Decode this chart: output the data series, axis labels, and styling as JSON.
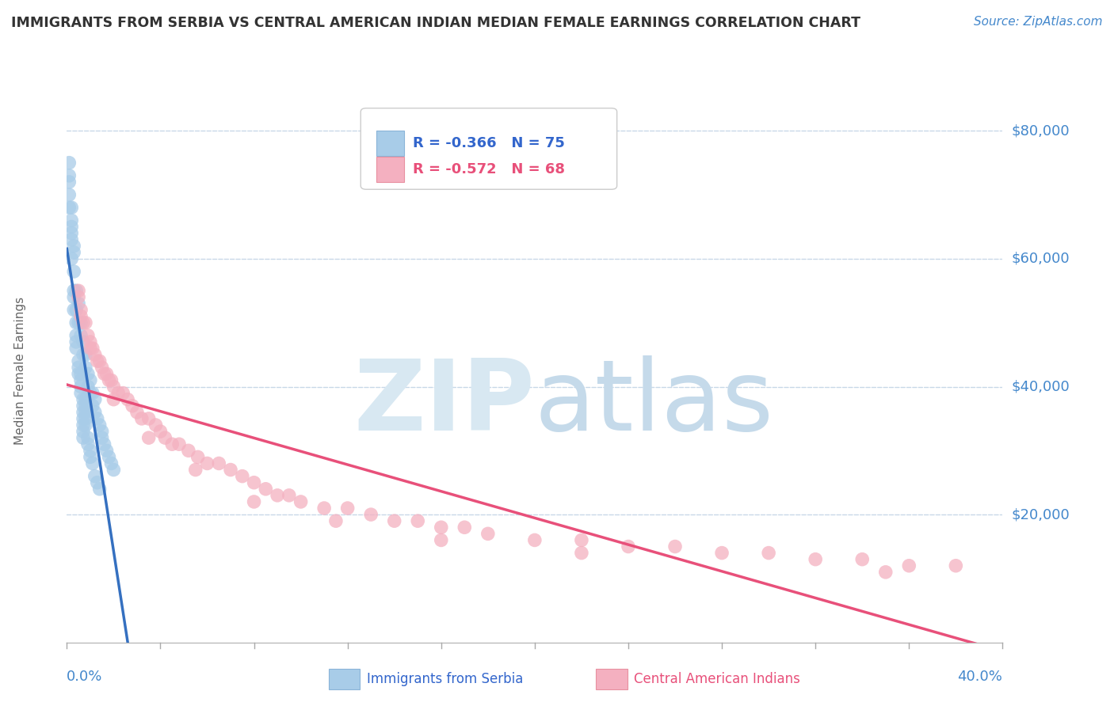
{
  "title": "IMMIGRANTS FROM SERBIA VS CENTRAL AMERICAN INDIAN MEDIAN FEMALE EARNINGS CORRELATION CHART",
  "source": "Source: ZipAtlas.com",
  "series1_label": "Immigrants from Serbia",
  "series2_label": "Central American Indians",
  "legend1_text": "R = -0.366   N = 75",
  "legend2_text": "R = -0.572   N = 68",
  "series1_scatter_color": "#a8cce8",
  "series2_scatter_color": "#f4b0c0",
  "series1_line_color": "#3570c0",
  "series2_line_color": "#e8507a",
  "legend1_text_color": "#3366cc",
  "legend2_text_color": "#e8507a",
  "title_color": "#333333",
  "source_color": "#4488cc",
  "ylabel_color": "#666666",
  "ytick_color": "#4488cc",
  "xtick_color": "#4488cc",
  "watermark_zip_color": "#d5e5f0",
  "watermark_atlas_color": "#c0d8ee",
  "grid_color": "#c8d8e8",
  "background_color": "#ffffff",
  "xlim": [
    0.0,
    0.4
  ],
  "ylim": [
    0,
    85000
  ],
  "ytick_vals": [
    20000,
    40000,
    60000,
    80000
  ],
  "ytick_labels": [
    "$20,000",
    "$40,000",
    "$60,000",
    "$80,000"
  ],
  "serbia_x": [
    0.002,
    0.002,
    0.003,
    0.003,
    0.003,
    0.004,
    0.004,
    0.005,
    0.005,
    0.006,
    0.006,
    0.007,
    0.007,
    0.008,
    0.008,
    0.009,
    0.009,
    0.01,
    0.01,
    0.011,
    0.011,
    0.012,
    0.012,
    0.013,
    0.014,
    0.015,
    0.015,
    0.016,
    0.017,
    0.018,
    0.019,
    0.02,
    0.001,
    0.001,
    0.001,
    0.002,
    0.002,
    0.002,
    0.003,
    0.003,
    0.003,
    0.004,
    0.004,
    0.004,
    0.004,
    0.005,
    0.005,
    0.005,
    0.006,
    0.006,
    0.006,
    0.006,
    0.007,
    0.007,
    0.007,
    0.007,
    0.007,
    0.007,
    0.007,
    0.008,
    0.008,
    0.008,
    0.008,
    0.008,
    0.009,
    0.009,
    0.01,
    0.01,
    0.011,
    0.012,
    0.013,
    0.014,
    0.001,
    0.001,
    0.002
  ],
  "serbia_y": [
    65000,
    68000,
    62000,
    58000,
    61000,
    55000,
    52000,
    50000,
    53000,
    48000,
    50000,
    45000,
    47000,
    43000,
    45000,
    42000,
    40000,
    39000,
    41000,
    39000,
    37000,
    36000,
    38000,
    35000,
    34000,
    32000,
    33000,
    31000,
    30000,
    29000,
    28000,
    27000,
    72000,
    70000,
    68000,
    66000,
    64000,
    63000,
    55000,
    54000,
    52000,
    50000,
    48000,
    47000,
    46000,
    44000,
    43000,
    42000,
    42000,
    41000,
    40000,
    39000,
    38000,
    37000,
    36000,
    35000,
    34000,
    33000,
    32000,
    38000,
    37000,
    36000,
    35000,
    34000,
    32000,
    31000,
    30000,
    29000,
    28000,
    26000,
    25000,
    24000,
    75000,
    73000,
    60000
  ],
  "ca_x": [
    0.005,
    0.006,
    0.006,
    0.007,
    0.008,
    0.009,
    0.01,
    0.011,
    0.012,
    0.013,
    0.014,
    0.015,
    0.016,
    0.017,
    0.018,
    0.019,
    0.02,
    0.022,
    0.024,
    0.026,
    0.028,
    0.03,
    0.032,
    0.035,
    0.038,
    0.04,
    0.042,
    0.045,
    0.048,
    0.052,
    0.056,
    0.06,
    0.065,
    0.07,
    0.075,
    0.08,
    0.085,
    0.09,
    0.095,
    0.1,
    0.11,
    0.12,
    0.13,
    0.14,
    0.15,
    0.16,
    0.17,
    0.18,
    0.2,
    0.22,
    0.24,
    0.26,
    0.28,
    0.3,
    0.32,
    0.34,
    0.36,
    0.38,
    0.005,
    0.01,
    0.02,
    0.035,
    0.055,
    0.08,
    0.115,
    0.16,
    0.22,
    0.35
  ],
  "ca_y": [
    54000,
    52000,
    51000,
    50000,
    50000,
    48000,
    46000,
    46000,
    45000,
    44000,
    44000,
    43000,
    42000,
    42000,
    41000,
    41000,
    40000,
    39000,
    39000,
    38000,
    37000,
    36000,
    35000,
    35000,
    34000,
    33000,
    32000,
    31000,
    31000,
    30000,
    29000,
    28000,
    28000,
    27000,
    26000,
    25000,
    24000,
    23000,
    23000,
    22000,
    21000,
    21000,
    20000,
    19000,
    19000,
    18000,
    18000,
    17000,
    16000,
    16000,
    15000,
    15000,
    14000,
    14000,
    13000,
    13000,
    12000,
    12000,
    55000,
    47000,
    38000,
    32000,
    27000,
    22000,
    19000,
    16000,
    14000,
    11000
  ]
}
